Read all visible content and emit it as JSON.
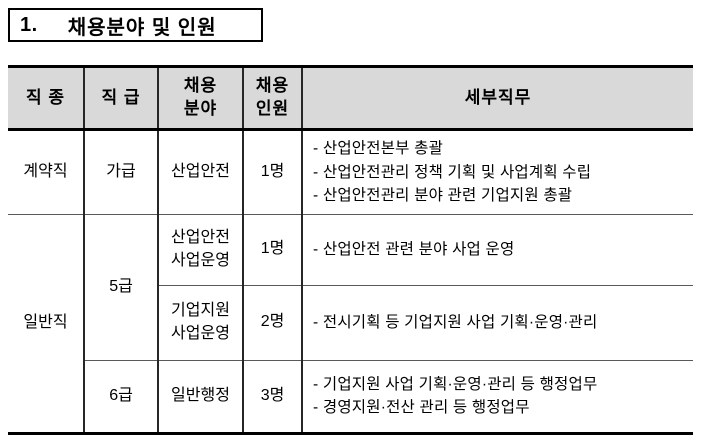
{
  "title": {
    "number": "1.",
    "text": "채용분야 및 인원"
  },
  "table": {
    "headers": {
      "job_type": "직 종",
      "grade": "직 급",
      "field": "채용\n분야",
      "count": "채용\n인원",
      "duties": "세부직무"
    },
    "rows": [
      {
        "job_type": "계약직",
        "grade": "가급",
        "field": "산업안전",
        "count": "1명",
        "duties": "- 산업안전본부 총괄\n- 산업안전관리 정책 기획 및 사업계획 수립\n- 산업안전관리 분야 관련 기업지원 총괄"
      },
      {
        "job_type": "일반직",
        "grade": "5급",
        "field": "산업안전\n사업운영",
        "count": "1명",
        "duties": "- 산업안전 관련 분야 사업 운영"
      },
      {
        "field": "기업지원\n사업운영",
        "count": "2명",
        "duties": "- 전시기획 등 기업지원 사업 기획·운영·관리"
      },
      {
        "grade": "6급",
        "field": "일반행정",
        "count": "3명",
        "duties": "- 기업지원 사업 기획·운영·관리 등 행정업무\n- 경영지원·전산 관리 등 행정업무"
      }
    ]
  }
}
